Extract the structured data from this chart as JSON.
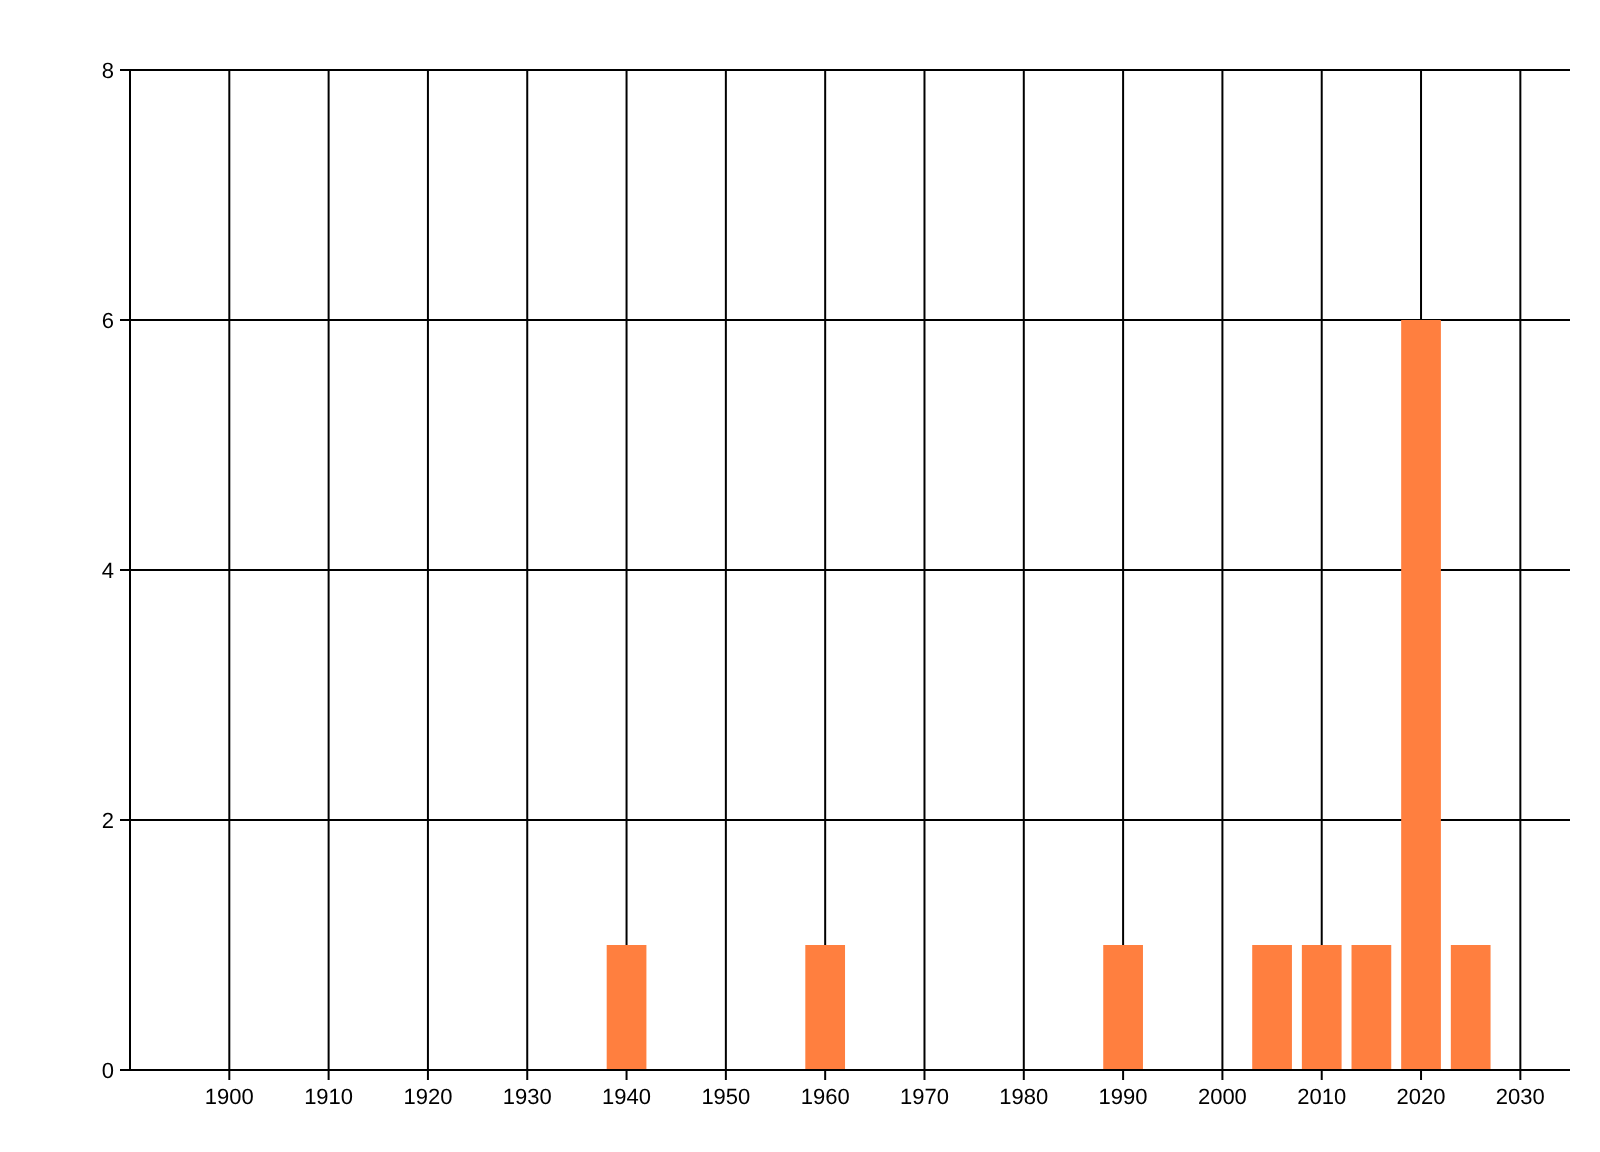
{
  "chart_data": {
    "type": "bar",
    "x": [
      1940,
      1960,
      1990,
      2005,
      2010,
      2015,
      2020,
      2025
    ],
    "series": [
      {
        "color": "#ff7f3f",
        "values": [
          1,
          1,
          1,
          1,
          1,
          1,
          6,
          1
        ]
      }
    ],
    "xlim": [
      1890,
      2035
    ],
    "xticks": [
      1900,
      1910,
      1920,
      1930,
      1940,
      1950,
      1960,
      1970,
      1980,
      1990,
      2000,
      2010,
      2020,
      2030
    ],
    "ylim": [
      0,
      8
    ],
    "yticks": [
      0,
      2,
      4,
      6,
      8
    ],
    "grid": true
  }
}
